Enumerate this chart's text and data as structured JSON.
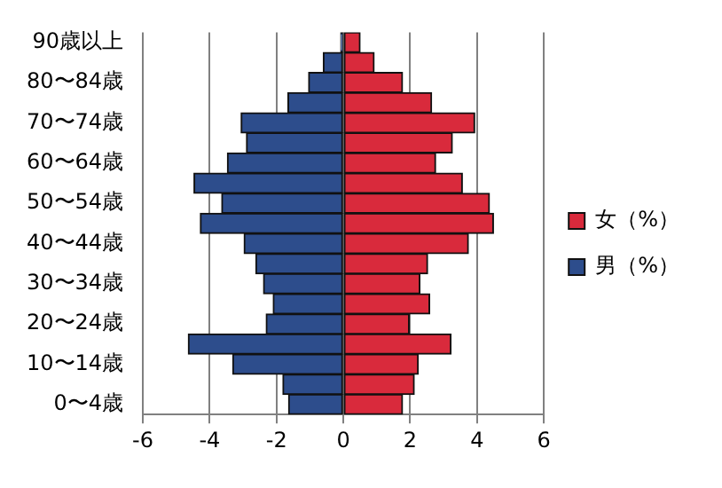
{
  "chart_data": {
    "type": "bar",
    "orientation": "horizontal",
    "stacked": true,
    "categories": [
      "90歳以上",
      null,
      "80〜84歳",
      null,
      "70〜74歳",
      null,
      "60〜64歳",
      null,
      "50〜54歳",
      null,
      "40〜44歳",
      null,
      "30〜34歳",
      null,
      "20〜24歳",
      null,
      "10〜14歳",
      null,
      "0〜4歳"
    ],
    "series": [
      {
        "name": "女（%）",
        "color": "#d92a3c",
        "values": [
          0.5,
          0.92,
          1.77,
          2.64,
          3.93,
          3.26,
          2.76,
          3.56,
          4.37,
          4.49,
          3.74,
          2.52,
          2.29,
          2.58,
          1.97,
          3.22,
          2.24,
          2.12,
          1.77
        ]
      },
      {
        "name": "男（%）",
        "color": "#2d4d8c",
        "values": [
          -0.08,
          -0.6,
          -1.04,
          -1.66,
          -3.06,
          -2.9,
          -3.47,
          -4.47,
          -3.64,
          -4.28,
          -2.97,
          -2.62,
          -2.39,
          -2.1,
          -2.31,
          -4.64,
          -3.31,
          -1.81,
          -1.64
        ]
      }
    ],
    "xlim": [
      -6,
      6
    ],
    "xticks": [
      -6,
      -4,
      -2,
      0,
      2,
      4,
      6
    ],
    "grid": "x",
    "legend": "right"
  }
}
